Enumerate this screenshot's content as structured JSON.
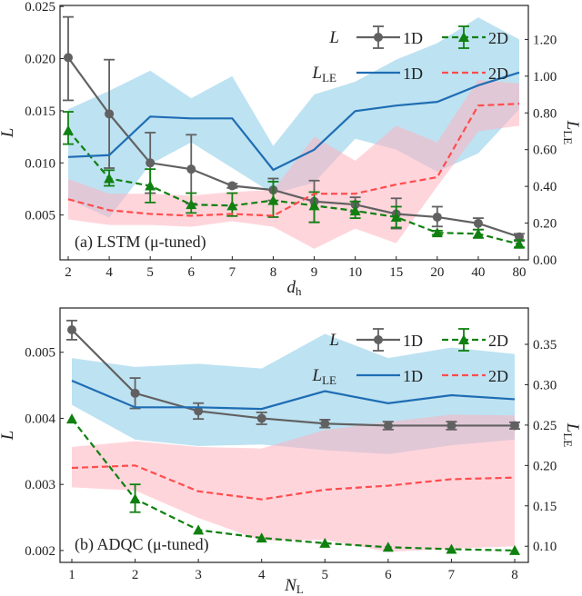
{
  "chart_data": [
    {
      "type": "line",
      "annotation": "(a) LSTM (μ-tuned)",
      "xlabel": "d",
      "xlabel_sub": "h",
      "ylabel": "L",
      "y2label": "L",
      "y2label_sub": "LE",
      "categories": [
        "2",
        "4",
        "5",
        "6",
        "7",
        "8",
        "9",
        "10",
        "15",
        "20",
        "40",
        "80"
      ],
      "ylim": [
        0.0007,
        0.0251
      ],
      "yticks": [
        0.005,
        0.01,
        0.015,
        0.02,
        0.025
      ],
      "ytick_labels": [
        "0.005",
        "0.010",
        "0.015",
        "0.020",
        "0.025"
      ],
      "y2lim": [
        0,
        1.385
      ],
      "y2ticks": [
        0,
        0.2,
        0.4,
        0.6,
        0.8,
        1.0,
        1.2
      ],
      "y2tick_labels": [
        "0.00",
        "0.20",
        "0.40",
        "0.60",
        "0.80",
        "1.00",
        "1.20"
      ],
      "legend": {
        "row1": "L",
        "row2": "L",
        "row2_sub": "LE",
        "placement": "top-right"
      },
      "series": [
        {
          "name": "1D",
          "group": "L",
          "axis": "left",
          "color": "#616161",
          "marker": "circle",
          "style": "solid",
          "values": [
            0.0201,
            0.0147,
            0.01,
            0.0094,
            0.0078,
            0.0074,
            0.0063,
            0.006,
            0.0051,
            0.0048,
            0.0042,
            0.0029
          ],
          "err_low": [
            0.016,
            0.0095,
            0.0071,
            0.0061,
            0.0076,
            0.0064,
            0.0043,
            0.0053,
            0.0037,
            0.0039,
            0.0036,
            0.0025
          ],
          "err_high": [
            0.024,
            0.0199,
            0.0129,
            0.0127,
            0.008,
            0.0085,
            0.0083,
            0.0067,
            0.0066,
            0.0058,
            0.0047,
            0.0032
          ]
        },
        {
          "name": "2D",
          "group": "L",
          "axis": "left",
          "color": "#108010",
          "marker": "triangle",
          "style": "dashed",
          "values": [
            0.0131,
            0.0085,
            0.0078,
            0.006,
            0.0059,
            0.0064,
            0.0059,
            0.0054,
            0.0048,
            0.0033,
            0.0032,
            0.0022
          ],
          "err_low": [
            0.0118,
            0.0078,
            0.0062,
            0.0052,
            0.0049,
            0.0048,
            0.0043,
            0.0047,
            0.0038,
            0.0031,
            0.0028,
            0.0019
          ],
          "err_high": [
            0.0149,
            0.0093,
            0.0094,
            0.0071,
            0.0071,
            0.0082,
            0.0072,
            0.0063,
            0.0058,
            0.0035,
            0.0036,
            0.0026
          ]
        },
        {
          "name": "1D",
          "group": "L_LE",
          "axis": "right",
          "color": "#1f6db3",
          "band_color": "#87cbe8",
          "style": "solid",
          "values": [
            0.56,
            0.57,
            0.78,
            0.77,
            0.77,
            0.49,
            0.6,
            0.81,
            0.84,
            0.86,
            0.95,
            1.02
          ],
          "band_low": [
            0.33,
            0.23,
            0.52,
            0.64,
            0.5,
            0.36,
            0.42,
            0.66,
            0.6,
            0.48,
            0.58,
            0.82
          ],
          "band_high": [
            0.82,
            0.92,
            1.03,
            0.88,
            1.0,
            0.62,
            0.9,
            0.97,
            1.09,
            1.18,
            1.32,
            1.2
          ]
        },
        {
          "name": "2D",
          "group": "L_LE",
          "axis": "right",
          "color": "#ff4d4d",
          "band_color": "#ffb3c0",
          "style": "dashed",
          "values": [
            0.33,
            0.27,
            0.25,
            0.24,
            0.25,
            0.24,
            0.36,
            0.36,
            0.41,
            0.45,
            0.84,
            0.85
          ],
          "band_low": [
            0.22,
            0.19,
            0.19,
            0.18,
            0.21,
            0.18,
            0.06,
            0.17,
            0.09,
            0.4,
            0.7,
            0.73
          ],
          "band_high": [
            0.44,
            0.36,
            0.36,
            0.35,
            0.37,
            0.38,
            0.67,
            0.54,
            0.73,
            0.64,
            0.98,
            0.96
          ]
        }
      ]
    },
    {
      "type": "line",
      "annotation": "(b) ADQC (μ-tuned)",
      "xlabel": "N",
      "xlabel_sub": "L",
      "ylabel": "L",
      "y2label": "L",
      "y2label_sub": "LE",
      "categories": [
        "1",
        "2",
        "3",
        "4",
        "5",
        "6",
        "7",
        "8"
      ],
      "ylim": [
        0.00182,
        0.00567
      ],
      "yticks": [
        0.002,
        0.003,
        0.004,
        0.005
      ],
      "ytick_labels": [
        "0.002",
        "0.003",
        "0.004",
        "0.005"
      ],
      "y2lim": [
        0.08,
        0.395
      ],
      "y2ticks": [
        0.1,
        0.15,
        0.2,
        0.25,
        0.3,
        0.35
      ],
      "y2tick_labels": [
        "0.10",
        "0.15",
        "0.20",
        "0.25",
        "0.30",
        "0.35"
      ],
      "legend": {
        "row1": "L",
        "row2": "L",
        "row2_sub": "LE",
        "placement": "top-right"
      },
      "series": [
        {
          "name": "1D",
          "group": "L",
          "axis": "left",
          "color": "#616161",
          "marker": "circle",
          "style": "solid",
          "values": [
            0.00534,
            0.00438,
            0.00411,
            0.004,
            0.00392,
            0.00389,
            0.00389,
            0.00389
          ],
          "err_low": [
            0.00519,
            0.00415,
            0.00399,
            0.00391,
            0.00386,
            0.00383,
            0.00383,
            0.00384
          ],
          "err_high": [
            0.00548,
            0.00461,
            0.00423,
            0.00409,
            0.00398,
            0.00395,
            0.00395,
            0.00394
          ]
        },
        {
          "name": "2D",
          "group": "L",
          "axis": "left",
          "color": "#108010",
          "marker": "triangle",
          "style": "dashed",
          "values": [
            0.00399,
            0.00278,
            0.00231,
            0.00219,
            0.00211,
            0.00205,
            0.00202,
            0.002
          ],
          "err_low": [
            0.00399,
            0.00258,
            0.00231,
            0.00219,
            0.00211,
            0.00205,
            0.00202,
            0.002
          ],
          "err_high": [
            0.00399,
            0.003,
            0.00231,
            0.00219,
            0.00211,
            0.00205,
            0.00202,
            0.002
          ]
        },
        {
          "name": "1D",
          "group": "L_LE",
          "axis": "right",
          "color": "#1f6db3",
          "band_color": "#87cbe8",
          "style": "solid",
          "values": [
            0.305,
            0.272,
            0.272,
            0.27,
            0.292,
            0.277,
            0.287,
            0.282
          ],
          "band_low": [
            0.275,
            0.232,
            0.224,
            0.226,
            0.219,
            0.214,
            0.225,
            0.232
          ],
          "band_high": [
            0.333,
            0.322,
            0.326,
            0.32,
            0.363,
            0.333,
            0.346,
            0.338
          ]
        },
        {
          "name": "2D",
          "group": "L_LE",
          "axis": "right",
          "color": "#ff4d4d",
          "band_color": "#ffb3c0",
          "style": "dashed",
          "values": [
            0.197,
            0.2,
            0.168,
            0.158,
            0.17,
            0.175,
            0.183,
            0.185
          ],
          "band_low": [
            0.173,
            0.169,
            0.135,
            0.107,
            0.108,
            0.093,
            0.097,
            0.1
          ],
          "band_high": [
            0.223,
            0.23,
            0.223,
            0.221,
            0.244,
            0.254,
            0.263,
            0.262
          ]
        }
      ]
    }
  ]
}
